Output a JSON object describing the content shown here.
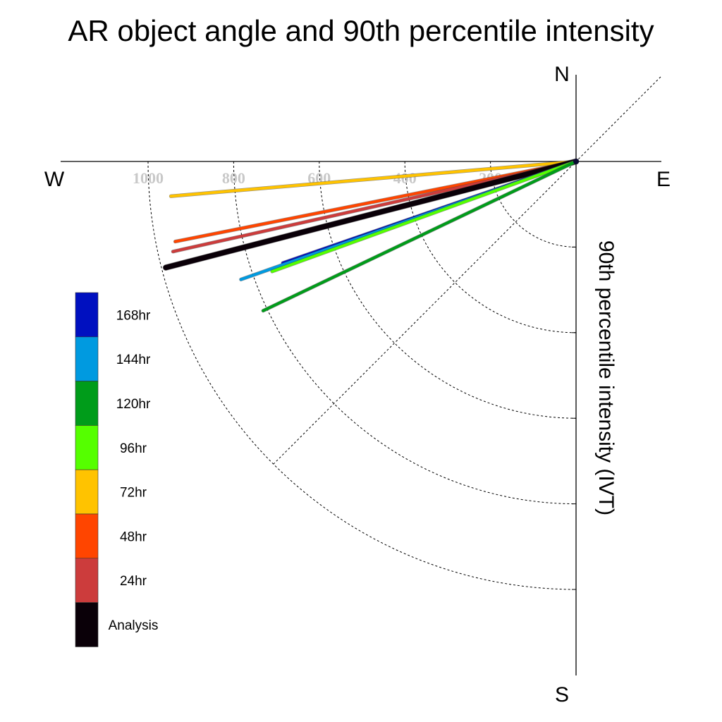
{
  "chart_data": {
    "type": "polar-line",
    "title": "AR object angle and 90th percentile intensity",
    "ylabel": "90th percentile intensity (IVT)",
    "compass": {
      "north": "N",
      "south": "S",
      "east": "E",
      "west": "W"
    },
    "radial_ticks": [
      "200",
      "400",
      "600",
      "800",
      "1000"
    ],
    "radial_tick_values": [
      200,
      400,
      600,
      800,
      1000
    ],
    "r_max": 1000,
    "angle_convention": "degrees below the west axis (clockwise from W toward S)",
    "series": [
      {
        "name": "72hr",
        "color": "#ffc300",
        "angle_deg": 4.9,
        "intensity": 950
      },
      {
        "name": "48hr",
        "color": "#ff4500",
        "angle_deg": 11.3,
        "intensity": 955
      },
      {
        "name": "24hr",
        "color": "#cc3c3c",
        "angle_deg": 12.6,
        "intensity": 965
      },
      {
        "name": "Analysis",
        "color": "#0a0008",
        "angle_deg": 14.5,
        "intensity": 990
      },
      {
        "name": "168hr",
        "color": "#0010c0",
        "angle_deg": 19.1,
        "intensity": 725
      },
      {
        "name": "144hr",
        "color": "#009ae0",
        "angle_deg": 19.4,
        "intensity": 830
      },
      {
        "name": "96hr",
        "color": "#55ff00",
        "angle_deg": 19.9,
        "intensity": 755
      },
      {
        "name": "120hr",
        "color": "#009c1a",
        "angle_deg": 25.5,
        "intensity": 810
      }
    ],
    "legend": [
      {
        "label": "168hr",
        "color": "#0010c0"
      },
      {
        "label": "144hr",
        "color": "#009ae0"
      },
      {
        "label": "120hr",
        "color": "#009c1a"
      },
      {
        "label": "96hr",
        "color": "#55ff00"
      },
      {
        "label": "72hr",
        "color": "#ffc300"
      },
      {
        "label": "48hr",
        "color": "#ff4500"
      },
      {
        "label": "24hr",
        "color": "#cc3c3c"
      },
      {
        "label": "Analysis",
        "color": "#0a0008"
      }
    ],
    "legend_placement": "left",
    "grid": true
  }
}
